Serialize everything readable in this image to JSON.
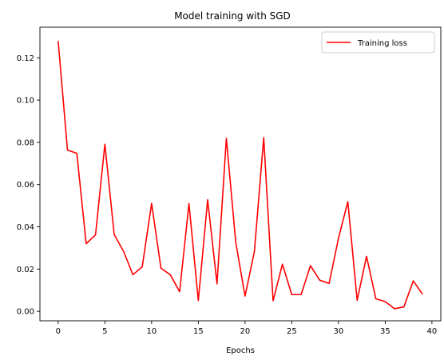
{
  "chart_data": {
    "type": "line",
    "title": "Model training with SGD",
    "xlabel": "Epochs",
    "ylabel": "",
    "xlim": [
      -1.95,
      40.95
    ],
    "ylim": [
      -0.0045,
      0.1345
    ],
    "xticks": [
      0,
      5,
      10,
      15,
      20,
      25,
      30,
      35,
      40
    ],
    "yticks": [
      0.0,
      0.02,
      0.04,
      0.06,
      0.08,
      0.1,
      0.12
    ],
    "xtick_labels": [
      "0",
      "5",
      "10",
      "15",
      "20",
      "25",
      "30",
      "35",
      "40"
    ],
    "ytick_labels": [
      "0.00",
      "0.02",
      "0.04",
      "0.06",
      "0.08",
      "0.10",
      "0.12"
    ],
    "grid": false,
    "legend_position": "top-right",
    "series": [
      {
        "name": "Training loss",
        "color": "#ff0000",
        "x": [
          0,
          1,
          2,
          3,
          4,
          5,
          6,
          7,
          8,
          9,
          10,
          11,
          12,
          13,
          14,
          15,
          16,
          17,
          18,
          19,
          20,
          21,
          22,
          23,
          24,
          25,
          26,
          27,
          28,
          29,
          30,
          31,
          32,
          33,
          34,
          35,
          36,
          37,
          38,
          39
        ],
        "values": [
          0.128,
          0.0763,
          0.0748,
          0.032,
          0.0362,
          0.0791,
          0.0363,
          0.0284,
          0.0173,
          0.0211,
          0.0511,
          0.0204,
          0.0173,
          0.0093,
          0.051,
          0.0051,
          0.0528,
          0.013,
          0.0819,
          0.0329,
          0.0072,
          0.0283,
          0.0822,
          0.005,
          0.0223,
          0.0079,
          0.0079,
          0.0216,
          0.0147,
          0.0132,
          0.0346,
          0.0519,
          0.0052,
          0.026,
          0.0059,
          0.0046,
          0.0012,
          0.0021,
          0.0144,
          0.0081
        ]
      }
    ]
  }
}
